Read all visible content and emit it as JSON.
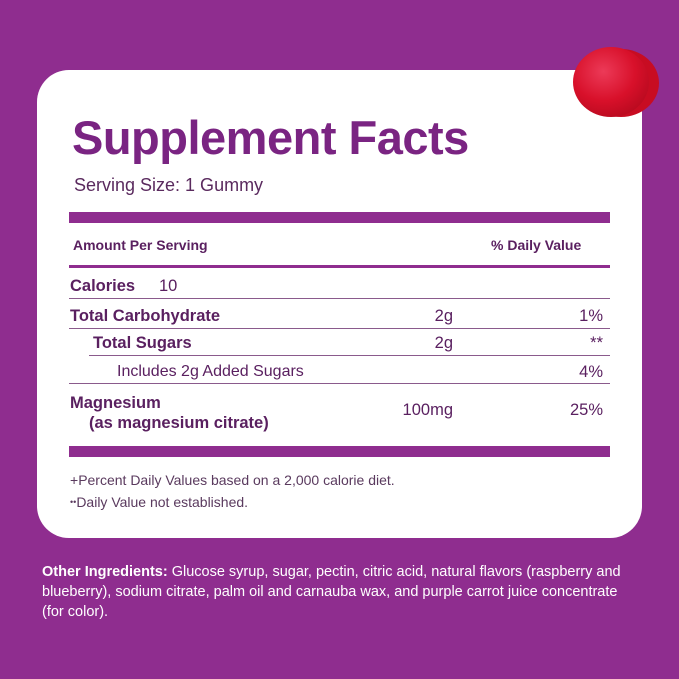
{
  "title": "Supplement Facts",
  "serving_size": "Serving Size: 1 Gummy",
  "header": {
    "amount": "Amount Per Serving",
    "dv": "% Daily Value"
  },
  "calories": {
    "label": "Calories",
    "value": "10"
  },
  "rows": [
    {
      "name": "Total Carbohydrate",
      "amount": "2g",
      "dv": "1%"
    },
    {
      "name": "Total Sugars",
      "amount": "2g",
      "dv": "**"
    },
    {
      "name": "Includes 2g Added Sugars",
      "amount": "",
      "dv": "4%"
    },
    {
      "name": "Magnesium",
      "sub": "(as magnesium citrate)",
      "amount": "100mg",
      "dv": "25%"
    }
  ],
  "footnotes": {
    "plus_symbol": "+",
    "plus": "Percent Daily Values based on a 2,000 calorie diet.",
    "star_symbol": "••",
    "star": "Daily Value not established."
  },
  "other_ingredients": {
    "label": "Other Ingredients:",
    "text": " Glucose syrup, sugar, pectin, citric acid, natural flavors (raspberry and blueberry), sodium citrate, palm oil and carnauba wax, and purple carrot juice concentrate (for color)."
  },
  "colors": {
    "background": "#8f2d8f",
    "title": "#7a2482",
    "gummy": "#d8102a"
  }
}
